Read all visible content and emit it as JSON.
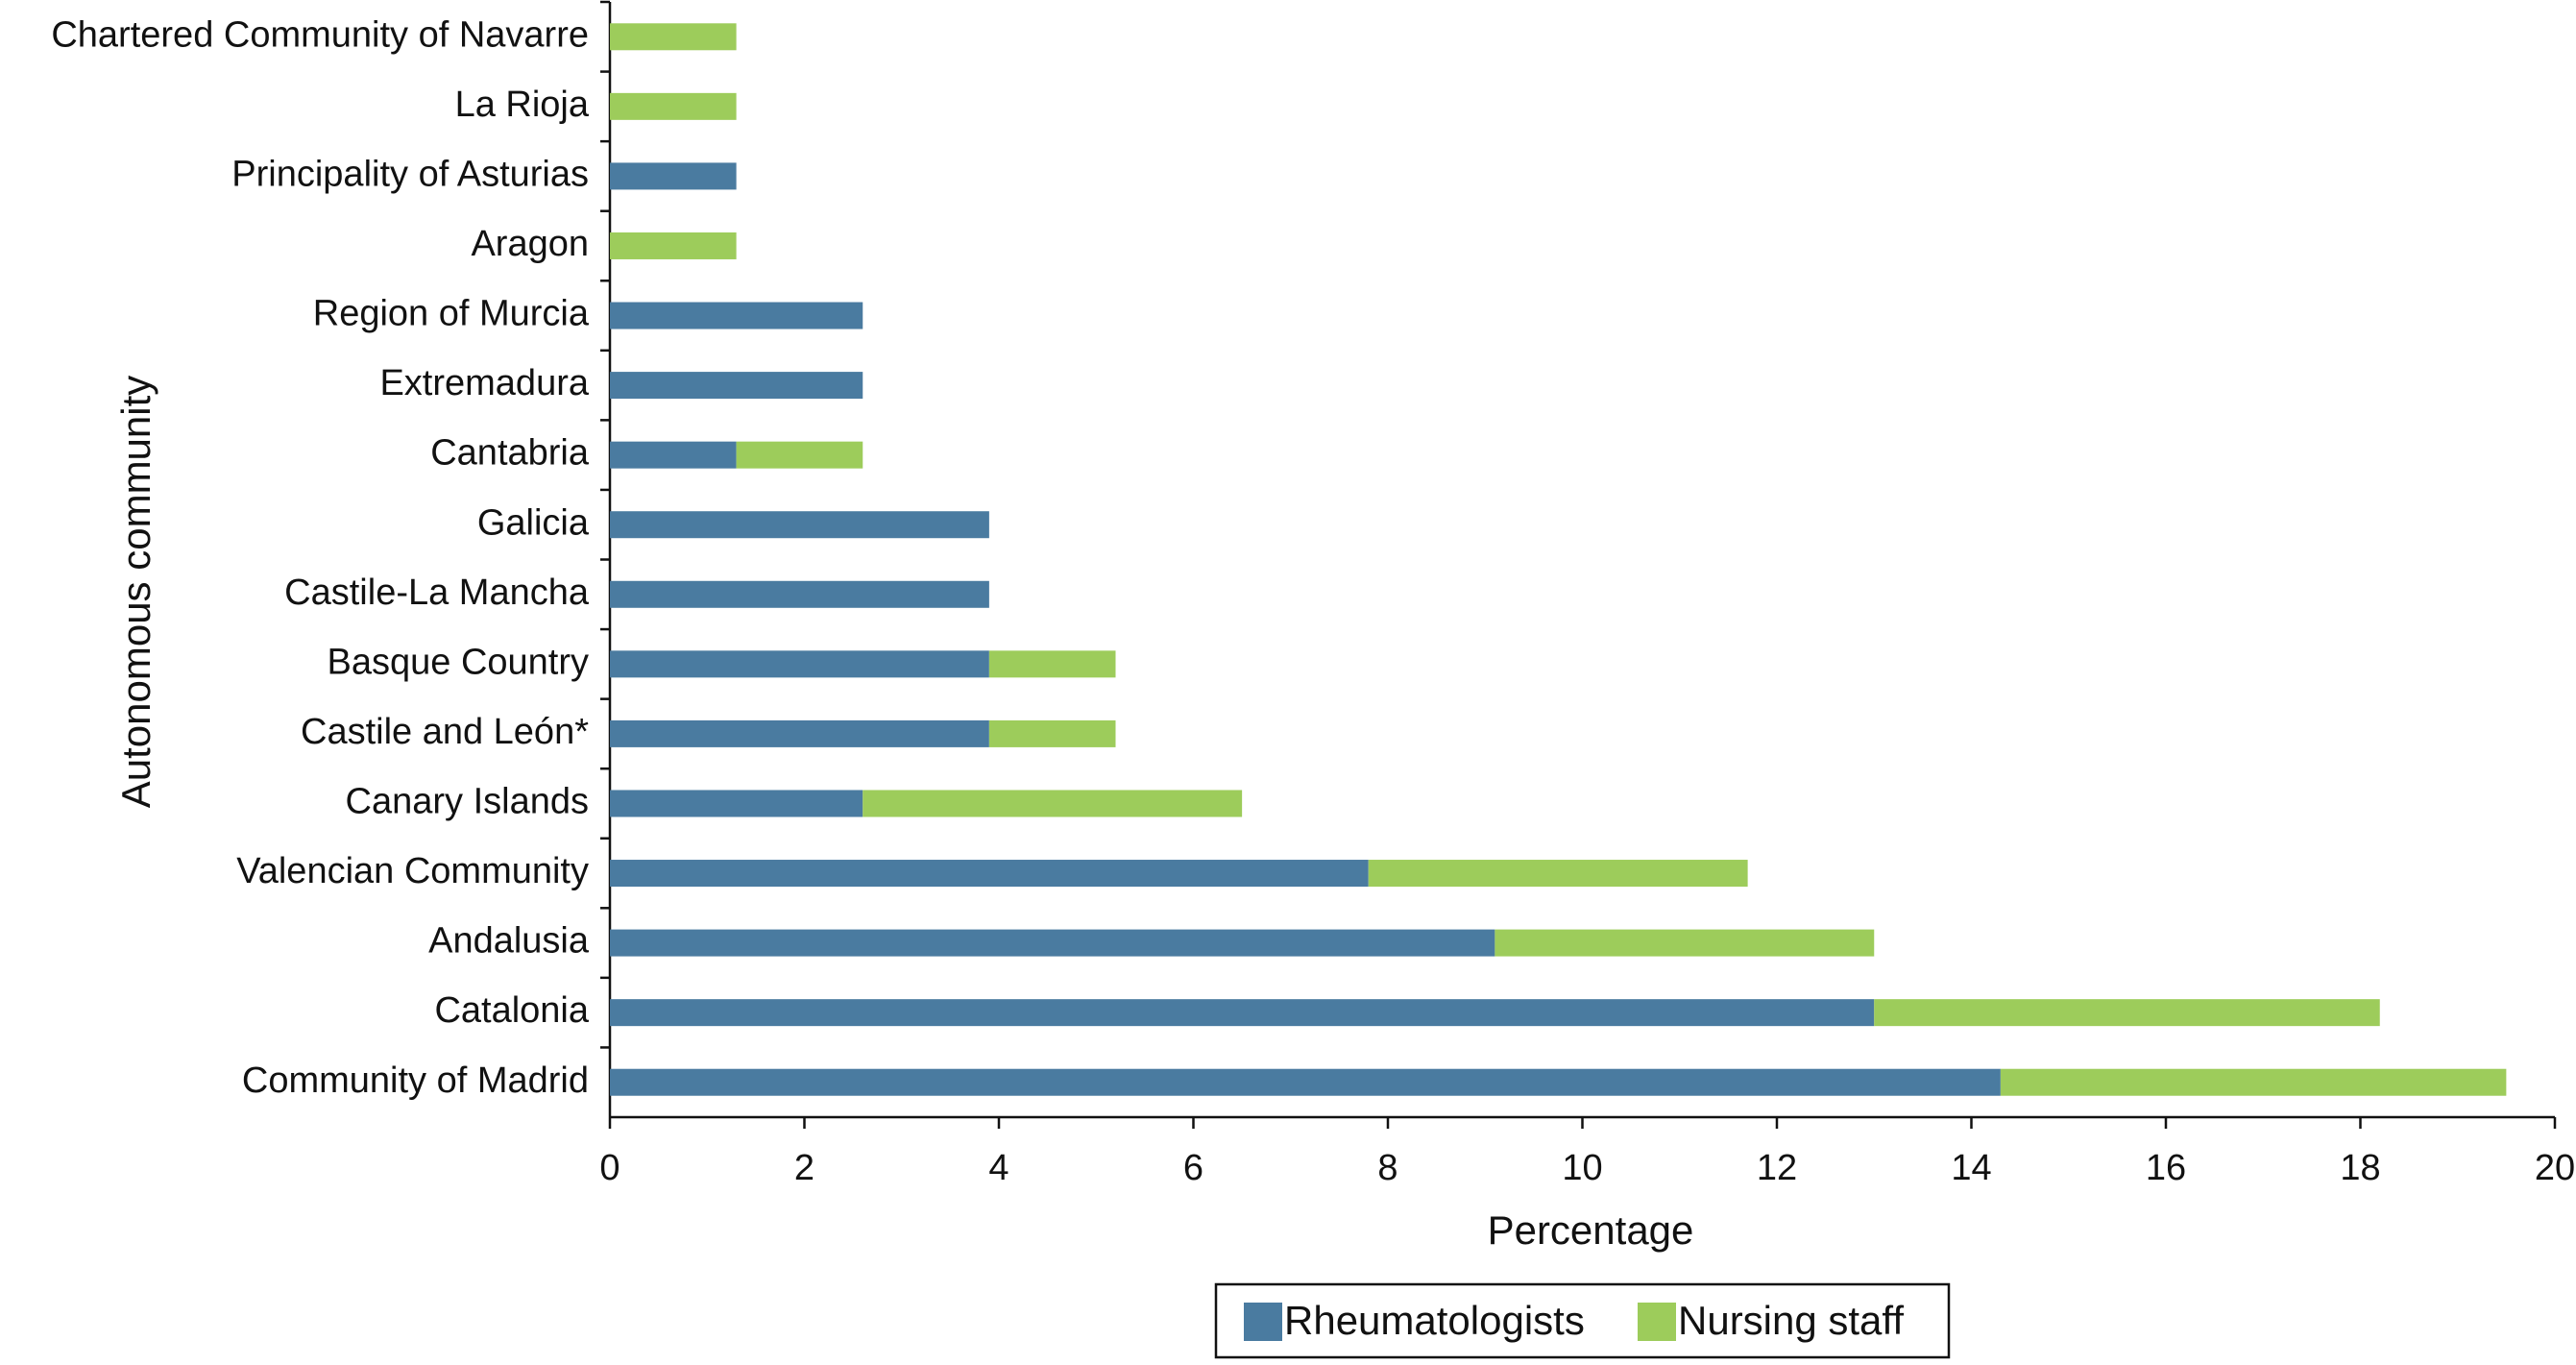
{
  "chart_data": {
    "type": "stacked-barh",
    "xlabel": "Percentage",
    "ylabel": "Autonomous community",
    "categories": [
      "Chartered Community of Navarre",
      "La Rioja",
      "Principality of Asturias",
      "Aragon",
      "Region of Murcia",
      "Extremadura",
      "Cantabria",
      "Galicia",
      "Castile-La Mancha",
      "Basque Country",
      "Castile and León*",
      "Canary Islands",
      "Valencian Community",
      "Andalusia",
      "Catalonia",
      "Community of Madrid"
    ],
    "series": [
      {
        "name": "Rheumatologists",
        "color": "#4a7ba0",
        "values": [
          0,
          0,
          1.3,
          0,
          2.6,
          2.6,
          1.3,
          3.9,
          3.9,
          3.9,
          3.9,
          2.6,
          7.8,
          9.1,
          13,
          14.3
        ]
      },
      {
        "name": "Nursing staff",
        "color": "#9dcc5b",
        "values": [
          1.3,
          1.3,
          0,
          1.3,
          0,
          0,
          1.3,
          0,
          0,
          1.3,
          1.3,
          3.9,
          3.9,
          3.9,
          5.2,
          5.2
        ]
      }
    ],
    "xlim": [
      0,
      20
    ],
    "xticks": [
      0,
      2,
      4,
      6,
      8,
      10,
      12,
      14,
      16,
      18,
      20
    ]
  }
}
